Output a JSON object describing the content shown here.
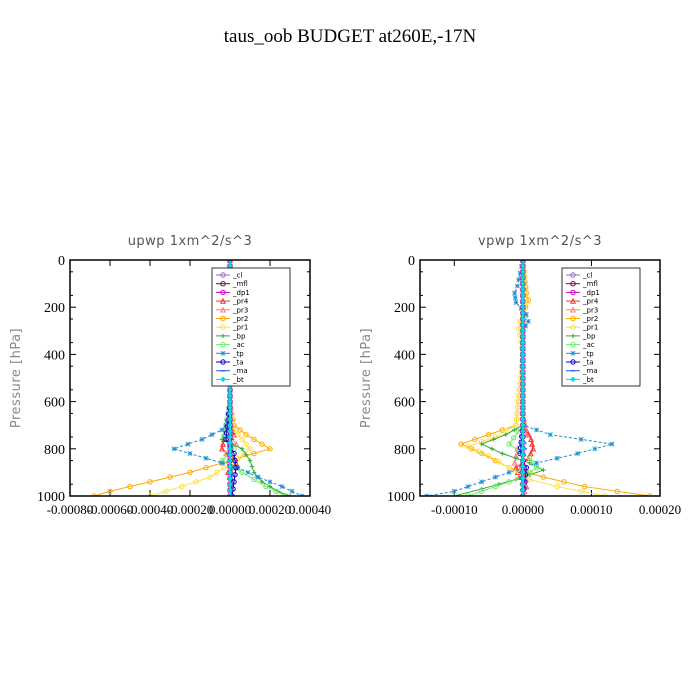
{
  "title": "taus_oob  BUDGET at260E,-17N",
  "chart_data": [
    {
      "type": "line",
      "title": "upwp   1xm^2/s^3",
      "ylabel": "Pressure [hPa]",
      "xlabel": "",
      "ylim": [
        1000,
        0
      ],
      "xlim": [
        -0.0008,
        0.0004
      ],
      "yticks": [
        0,
        200,
        400,
        600,
        800,
        1000
      ],
      "xtick_labels": [
        "-0.00080",
        "-0.00060",
        "-0.00040",
        "-0.00020",
        "0.00000",
        "0.00020",
        "0.00040"
      ],
      "xtick_values": [
        -0.0008,
        -0.0006,
        -0.0004,
        -0.0002,
        0.0,
        0.0002,
        0.0004
      ],
      "legend": {
        "location": "top-right",
        "entries": [
          "_cl",
          "_mfl",
          "_dp1",
          "_pr4",
          "_pr3",
          "_pr2",
          "_pr1",
          "_bp",
          "_ac",
          "_tp",
          "_ta",
          "_ma",
          "_bt"
        ]
      },
      "series": [
        {
          "name": "_cl",
          "color": "#9966cc",
          "marker": "circle",
          "p": [
            0,
            300,
            600,
            700,
            800,
            900,
            1000
          ],
          "x": [
            0,
            0,
            0,
            0,
            0,
            0,
            0
          ]
        },
        {
          "name": "_mfl",
          "color": "#800040",
          "marker": "circle",
          "p": [
            0,
            300,
            600,
            700,
            800,
            900,
            1000
          ],
          "x": [
            0,
            0,
            0,
            0,
            0,
            0,
            0
          ]
        },
        {
          "name": "_dp1",
          "color": "#cc00cc",
          "marker": "circle",
          "p": [
            0,
            300,
            600,
            700,
            800,
            900,
            1000
          ],
          "x": [
            0,
            0,
            0,
            0,
            0,
            0,
            0
          ]
        },
        {
          "name": "_pr4",
          "color": "#ff3030",
          "marker": "triangle",
          "p": [
            0,
            600,
            700,
            740,
            760,
            800,
            840,
            860,
            900,
            940,
            1000
          ],
          "x": [
            0,
            0,
            1e-05,
            2e-05,
            -3e-05,
            -4e-05,
            2e-05,
            3e-05,
            -1e-05,
            1e-05,
            0
          ]
        },
        {
          "name": "_pr3",
          "color": "#ff8080",
          "marker": "triangle",
          "p": [
            0,
            600,
            720,
            780,
            820,
            880,
            1000
          ],
          "x": [
            0,
            0,
            -2e-05,
            3e-05,
            -2e-05,
            1e-05,
            0
          ]
        },
        {
          "name": "_pr2",
          "color": "#ffaa00",
          "marker": "circle",
          "p": [
            0,
            600,
            700,
            740,
            780,
            800,
            820,
            860,
            900,
            940,
            980,
            1000
          ],
          "x": [
            0,
            0,
            2e-05,
            8e-05,
            0.00016,
            0.0002,
            0.00012,
            -4e-05,
            -0.0002,
            -0.0004,
            -0.0006,
            -0.00068
          ]
        },
        {
          "name": "_pr1",
          "color": "#ffe040",
          "marker": "circle",
          "p": [
            0,
            600,
            720,
            760,
            800,
            840,
            880,
            920,
            960,
            1000
          ],
          "x": [
            0,
            0,
            2e-05,
            6e-05,
            0.0001,
            4e-05,
            -3e-05,
            -0.0001,
            -0.00024,
            -0.0004
          ]
        },
        {
          "name": "_bp",
          "color": "#33aa33",
          "marker": "plus",
          "p": [
            0,
            650,
            720,
            760,
            800,
            850,
            900,
            940,
            980,
            1000
          ],
          "x": [
            0,
            0,
            -2e-05,
            -4e-05,
            6e-05,
            0.0001,
            0.00012,
            0.00016,
            0.00024,
            0.0003
          ]
        },
        {
          "name": "_ac",
          "color": "#66ee66",
          "marker": "circle",
          "p": [
            0,
            600,
            750,
            800,
            850,
            900,
            960,
            1000
          ],
          "x": [
            0,
            0,
            -3e-05,
            2e-05,
            -4e-05,
            6e-05,
            0.00018,
            0.00028
          ]
        },
        {
          "name": "_tp",
          "color": "#1f8fd0",
          "marker": "star",
          "p": [
            0,
            680,
            720,
            760,
            800,
            840,
            880,
            920,
            960,
            1000
          ],
          "x": [
            0,
            0,
            -4e-05,
            -0.00014,
            -0.00028,
            -0.00012,
            4e-05,
            0.00014,
            0.00026,
            0.00036
          ]
        },
        {
          "name": "_ta",
          "color": "#0000cc",
          "marker": "circle",
          "p": [
            0,
            600,
            760,
            820,
            880,
            940,
            1000
          ],
          "x": [
            0,
            0,
            -2e-05,
            2e-05,
            3e-05,
            2e-05,
            1e-05
          ]
        },
        {
          "name": "_ma",
          "color": "#2255ff",
          "marker": "dash",
          "p": [
            0,
            600,
            760,
            820,
            880,
            1000
          ],
          "x": [
            0,
            0,
            1e-05,
            -1e-05,
            1e-05,
            0
          ]
        },
        {
          "name": "_bt",
          "color": "#00dddd",
          "marker": "diamond",
          "p": [
            0,
            300,
            600,
            900,
            1000
          ],
          "x": [
            0,
            0,
            0,
            0,
            0
          ]
        }
      ]
    },
    {
      "type": "line",
      "title": "vpwp   1xm^2/s^3",
      "ylabel": "Pressure [hPa]",
      "xlabel": "",
      "ylim": [
        1000,
        0
      ],
      "xlim": [
        -0.00015,
        0.0002
      ],
      "yticks": [
        0,
        200,
        400,
        600,
        800,
        1000
      ],
      "xtick_labels": [
        "-0.00010",
        "0.00000",
        "0.00010",
        "0.00020"
      ],
      "xtick_values": [
        -0.0001,
        0.0,
        0.0001,
        0.0002
      ],
      "legend": {
        "location": "top-right",
        "entries": [
          "_cl",
          "_mfl",
          "_dp1",
          "_pr4",
          "_pr3",
          "_pr2",
          "_pr1",
          "_bp",
          "_ac",
          "_tp",
          "_ta",
          "_ma",
          "_bt"
        ]
      },
      "series": [
        {
          "name": "_cl",
          "color": "#9966cc",
          "marker": "circle",
          "p": [
            0,
            300,
            600,
            700,
            800,
            900,
            1000
          ],
          "x": [
            0,
            0,
            0,
            0,
            0,
            0,
            0
          ]
        },
        {
          "name": "_mfl",
          "color": "#800040",
          "marker": "circle",
          "p": [
            0,
            300,
            600,
            700,
            800,
            900,
            1000
          ],
          "x": [
            0,
            0,
            0,
            0,
            0,
            0,
            0
          ]
        },
        {
          "name": "_dp1",
          "color": "#cc00cc",
          "marker": "circle",
          "p": [
            0,
            300,
            600,
            700,
            800,
            900,
            1000
          ],
          "x": [
            0,
            0,
            0,
            0,
            0,
            0,
            0
          ]
        },
        {
          "name": "_pr4",
          "color": "#ff3030",
          "marker": "triangle",
          "p": [
            0,
            650,
            720,
            760,
            800,
            840,
            880,
            920,
            960,
            1000
          ],
          "x": [
            0,
            0,
            5e-06,
            1.2e-05,
            1.5e-05,
            8e-06,
            -1e-05,
            -5e-06,
            5e-06,
            0
          ]
        },
        {
          "name": "_pr3",
          "color": "#ff8080",
          "marker": "triangle",
          "p": [
            0,
            650,
            740,
            800,
            860,
            900,
            960,
            1000
          ],
          "x": [
            0,
            0,
            5e-06,
            -8e-06,
            -1.2e-05,
            6e-06,
            4e-06,
            0
          ]
        },
        {
          "name": "_pr2",
          "color": "#ffaa00",
          "marker": "circle",
          "p": [
            0,
            140,
            170,
            200,
            260,
            400,
            700,
            740,
            780,
            820,
            880,
            920,
            960,
            1000
          ],
          "x": [
            0,
            5e-06,
            8e-06,
            4e-06,
            0,
            0,
            -1e-05,
            -5e-05,
            -9e-05,
            -6e-05,
            -2e-05,
            3e-05,
            9e-05,
            0.000185
          ]
        },
        {
          "name": "_pr1",
          "color": "#ffe040",
          "marker": "circle",
          "p": [
            0,
            150,
            180,
            260,
            290,
            400,
            700,
            750,
            790,
            830,
            880,
            930,
            960,
            1000
          ],
          "x": [
            0,
            4e-06,
            6e-06,
            -4e-06,
            -6e-06,
            0,
            -1e-05,
            -4e-05,
            -8e-05,
            -5e-05,
            -2e-05,
            1e-05,
            5e-05,
            0.00012
          ]
        },
        {
          "name": "_bp",
          "color": "#33aa33",
          "marker": "plus",
          "p": [
            0,
            700,
            740,
            780,
            820,
            860,
            890,
            930,
            970,
            1000
          ],
          "x": [
            0,
            0,
            -2.5e-05,
            -6e-05,
            -3e-05,
            1e-05,
            3e-05,
            -1e-05,
            -6e-05,
            -0.0001
          ]
        },
        {
          "name": "_ac",
          "color": "#66ee66",
          "marker": "circle",
          "p": [
            0,
            700,
            780,
            840,
            880,
            920,
            960,
            1000
          ],
          "x": [
            0,
            0,
            -2e-05,
            1e-05,
            2e-05,
            0,
            -4e-05,
            -8e-05
          ]
        },
        {
          "name": "_tp",
          "color": "#1f8fd0",
          "marker": "star",
          "p": [
            0,
            110,
            140,
            180,
            230,
            260,
            300,
            700,
            740,
            780,
            820,
            860,
            900,
            940,
            980,
            1000
          ],
          "x": [
            0,
            -8e-06,
            -1.2e-05,
            -1e-05,
            5e-06,
            8e-06,
            0,
            0,
            4e-05,
            0.00013,
            8e-05,
            2e-05,
            -2e-05,
            -6e-05,
            -0.0001,
            -0.00014
          ]
        },
        {
          "name": "_ta",
          "color": "#0000cc",
          "marker": "circle",
          "p": [
            0,
            700,
            820,
            880,
            940,
            1000
          ],
          "x": [
            0,
            0,
            -4e-06,
            5e-06,
            3e-06,
            0
          ]
        },
        {
          "name": "_ma",
          "color": "#2255ff",
          "marker": "dash",
          "p": [
            0,
            700,
            800,
            900,
            1000
          ],
          "x": [
            0,
            0,
            3e-06,
            -3e-06,
            0
          ]
        },
        {
          "name": "_bt",
          "color": "#00dddd",
          "marker": "diamond",
          "p": [
            0,
            300,
            600,
            900,
            1000
          ],
          "x": [
            0,
            0,
            0,
            0,
            0
          ]
        }
      ]
    }
  ]
}
